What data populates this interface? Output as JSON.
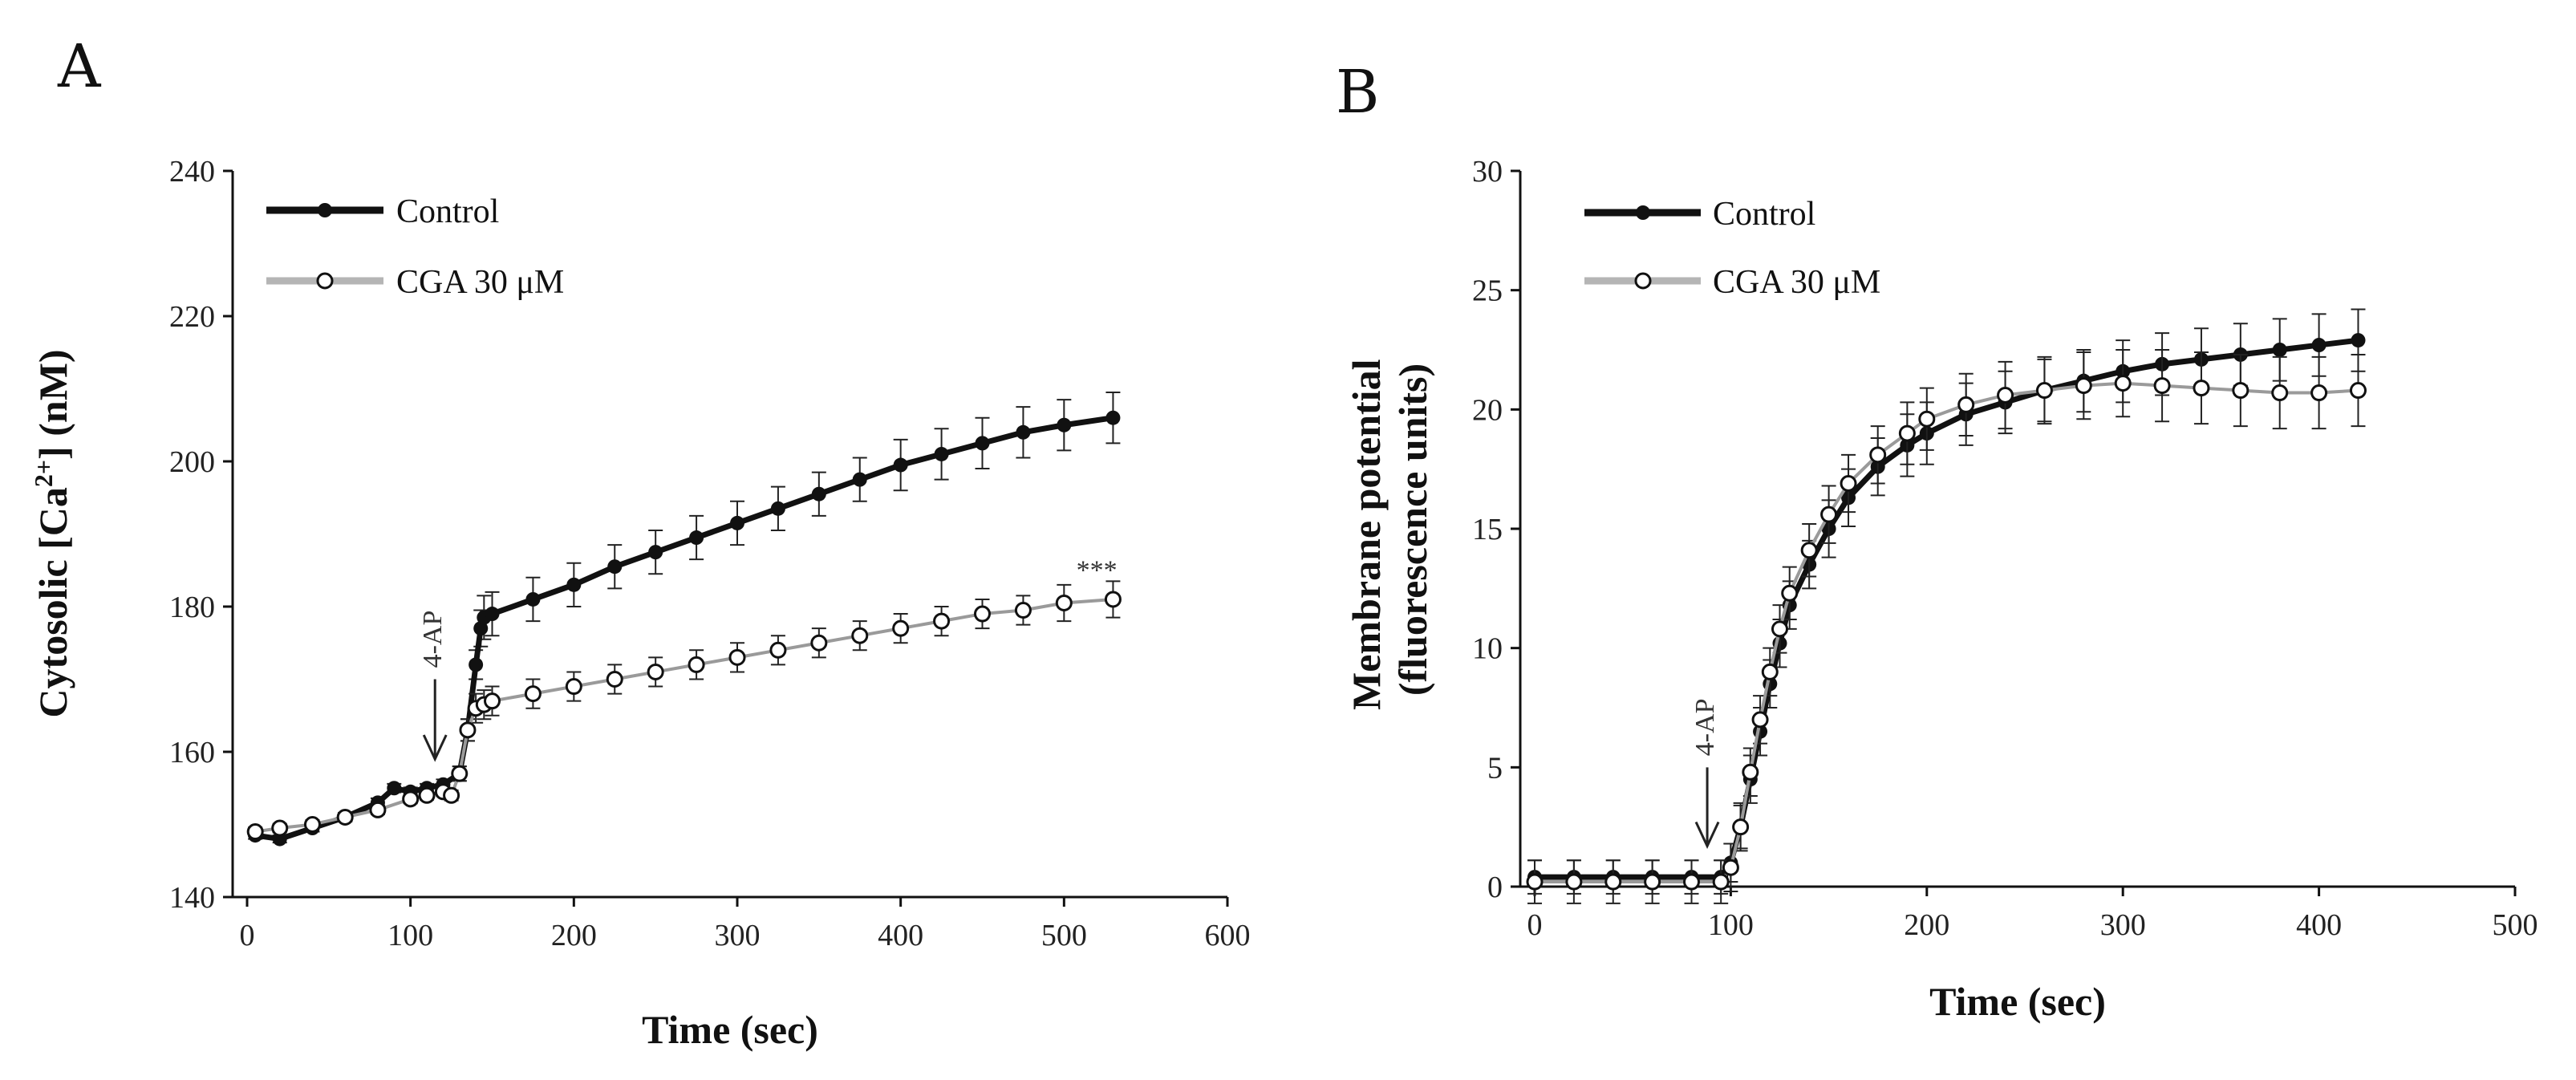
{
  "chart_data": [
    {
      "panel": "A",
      "type": "line",
      "xlabel": "Time (sec)",
      "ylabel_prefix": "Cytosolic [Ca",
      "ylabel_sup": "2+",
      "ylabel_suffix": "] (nM)",
      "xlim": [
        0,
        600
      ],
      "ylim": [
        140,
        240
      ],
      "xticks": [
        0,
        100,
        200,
        300,
        400,
        500,
        600
      ],
      "yticks": [
        140,
        160,
        180,
        200,
        220,
        240
      ],
      "legend_position": "top-left",
      "series": [
        {
          "name": "Control",
          "color": "#111111",
          "marker": "filled",
          "x": [
            5,
            20,
            40,
            60,
            80,
            90,
            100,
            110,
            120,
            130,
            135,
            140,
            143,
            145,
            150,
            175,
            200,
            225,
            250,
            275,
            300,
            325,
            350,
            375,
            400,
            425,
            450,
            475,
            500,
            530
          ],
          "y": [
            148.5,
            148,
            149.5,
            151,
            153,
            155,
            154.5,
            155,
            155.5,
            157,
            163,
            172,
            177,
            178.5,
            179,
            181,
            183,
            185.5,
            187.5,
            189.5,
            191.5,
            193.5,
            195.5,
            197.5,
            199.5,
            201,
            202.5,
            204,
            205,
            206
          ],
          "err": [
            0.5,
            0.5,
            0.5,
            0.6,
            0.6,
            0.6,
            0.6,
            0.6,
            0.7,
            1,
            1.5,
            2,
            2.5,
            3,
            3,
            3,
            3,
            3,
            3,
            3,
            3,
            3,
            3,
            3,
            3.5,
            3.5,
            3.5,
            3.5,
            3.5,
            3.5
          ]
        },
        {
          "name": "CGA 30 μM",
          "color": "#b5b5b5",
          "marker": "open",
          "x": [
            5,
            20,
            40,
            60,
            80,
            100,
            110,
            120,
            125,
            130,
            135,
            140,
            145,
            150,
            175,
            200,
            225,
            250,
            275,
            300,
            325,
            350,
            375,
            400,
            425,
            450,
            475,
            500,
            530
          ],
          "y": [
            149,
            149.5,
            150,
            151,
            152,
            153.5,
            154,
            154.5,
            154,
            157,
            163,
            166,
            166.5,
            167,
            168,
            169,
            170,
            171,
            172,
            173,
            174,
            175,
            176,
            177,
            178,
            179,
            179.5,
            180.5,
            181
          ],
          "err": [
            0.6,
            0.6,
            0.6,
            0.6,
            0.6,
            0.6,
            0.6,
            0.6,
            0.7,
            1,
            1.5,
            2,
            2,
            2,
            2,
            2,
            2,
            2,
            2,
            2,
            2,
            2,
            2,
            2,
            2,
            2,
            2,
            2.5,
            2.5
          ]
        }
      ],
      "arrow": {
        "label": "4-AP",
        "x": 115,
        "y_tip": 159,
        "y_top": 170
      },
      "significance": {
        "label": "***",
        "x": 520,
        "y": 186
      }
    },
    {
      "panel": "B",
      "type": "line",
      "xlabel": "Time (sec)",
      "ylabel_line1": "Membrane potential",
      "ylabel_line2": "(fluorescence units)",
      "xlim": [
        0,
        500
      ],
      "ylim": [
        0,
        30
      ],
      "xticks": [
        0,
        100,
        200,
        300,
        400,
        500
      ],
      "yticks": [
        0,
        5,
        10,
        15,
        20,
        25,
        30
      ],
      "legend_position": "top-left",
      "series": [
        {
          "name": "Control",
          "color": "#111111",
          "marker": "filled",
          "x": [
            0,
            20,
            40,
            60,
            80,
            95,
            100,
            105,
            110,
            115,
            120,
            125,
            130,
            140,
            150,
            160,
            175,
            190,
            200,
            220,
            240,
            260,
            280,
            300,
            320,
            340,
            360,
            380,
            400,
            420
          ],
          "y": [
            0.4,
            0.4,
            0.4,
            0.4,
            0.4,
            0.4,
            1,
            2.5,
            4.5,
            6.5,
            8.5,
            10.2,
            11.8,
            13.5,
            15,
            16.3,
            17.6,
            18.5,
            19,
            19.8,
            20.3,
            20.8,
            21.2,
            21.6,
            21.9,
            22.1,
            22.3,
            22.5,
            22.7,
            22.9
          ],
          "err": [
            0.7,
            0.7,
            0.7,
            0.7,
            0.7,
            0.7,
            0.8,
            0.9,
            1,
            1,
            1,
            1,
            1,
            1,
            1.2,
            1.2,
            1.2,
            1.3,
            1.3,
            1.3,
            1.3,
            1.3,
            1.3,
            1.3,
            1.3,
            1.3,
            1.3,
            1.3,
            1.3,
            1.3
          ]
        },
        {
          "name": "CGA 30 μM",
          "color": "#b5b5b5",
          "marker": "open",
          "x": [
            0,
            20,
            40,
            60,
            80,
            95,
            100,
            105,
            110,
            115,
            120,
            125,
            130,
            140,
            150,
            160,
            175,
            190,
            200,
            220,
            240,
            260,
            280,
            300,
            320,
            340,
            360,
            380,
            400,
            420
          ],
          "y": [
            0.2,
            0.2,
            0.2,
            0.2,
            0.2,
            0.2,
            0.8,
            2.5,
            4.8,
            7,
            9,
            10.8,
            12.3,
            14.1,
            15.6,
            16.9,
            18.1,
            19,
            19.6,
            20.2,
            20.6,
            20.8,
            21,
            21.1,
            21,
            20.9,
            20.8,
            20.7,
            20.7,
            20.8
          ],
          "err": [
            0.9,
            0.9,
            0.9,
            0.9,
            0.9,
            0.9,
            1,
            1,
            1,
            1,
            1,
            1,
            1.1,
            1.1,
            1.2,
            1.2,
            1.2,
            1.3,
            1.3,
            1.3,
            1.4,
            1.4,
            1.4,
            1.4,
            1.5,
            1.5,
            1.5,
            1.5,
            1.5,
            1.5
          ]
        }
      ],
      "arrow": {
        "label": "4-AP",
        "x": 88,
        "y_tip": 1.7,
        "y_top": 5
      }
    }
  ]
}
